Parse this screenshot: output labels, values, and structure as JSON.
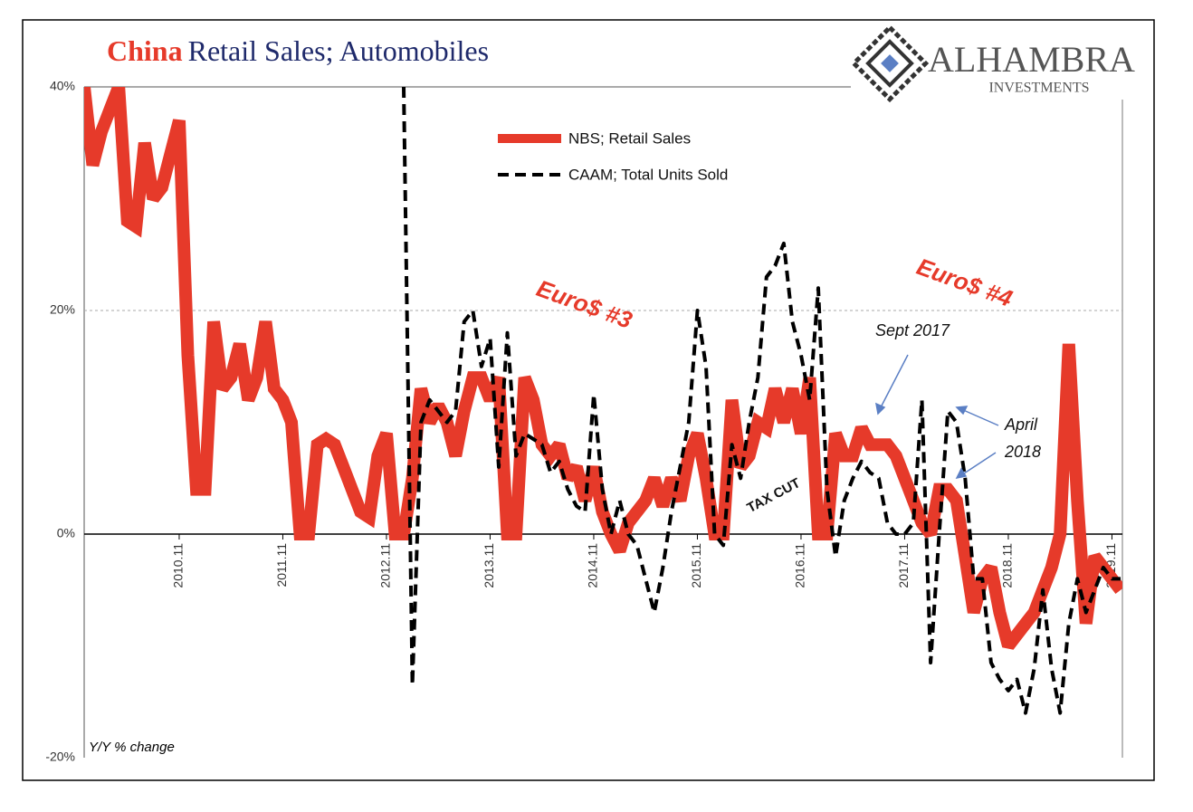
{
  "chart_data": {
    "type": "line",
    "title_parts": [
      "China",
      "Retail Sales; Automobiles"
    ],
    "brand": {
      "name": "ALHAMBRA",
      "tagline": "INVESTMENTS"
    },
    "ylabel": "Y/Y % change",
    "ylim": [
      -20,
      40
    ],
    "yticks": [
      {
        "value": -20,
        "label": "-20%"
      },
      {
        "value": 0,
        "label": "0%"
      },
      {
        "value": 20,
        "label": "20%"
      },
      {
        "value": 40,
        "label": "40%"
      }
    ],
    "grid": true,
    "categories": [
      null,
      null,
      null,
      null,
      null,
      null,
      null,
      null,
      null,
      null,
      null,
      "2010.11",
      null,
      null,
      null,
      null,
      null,
      null,
      null,
      null,
      null,
      null,
      null,
      "2011.11",
      null,
      null,
      null,
      null,
      null,
      null,
      null,
      null,
      null,
      null,
      null,
      "2012.11",
      null,
      null,
      null,
      null,
      null,
      null,
      null,
      null,
      null,
      null,
      null,
      "2013.11",
      null,
      null,
      null,
      null,
      null,
      null,
      null,
      null,
      null,
      null,
      null,
      "2014.11",
      null,
      null,
      null,
      null,
      null,
      null,
      null,
      null,
      null,
      null,
      null,
      "2015.11",
      null,
      null,
      null,
      null,
      null,
      null,
      null,
      null,
      null,
      null,
      null,
      "2016.11",
      null,
      null,
      null,
      null,
      null,
      null,
      null,
      null,
      null,
      null,
      null,
      "2017.11",
      null,
      null,
      null,
      null,
      null,
      null,
      null,
      null,
      null,
      null,
      null,
      "2018.11",
      null,
      null,
      null,
      null,
      null,
      null,
      null,
      null,
      null,
      null,
      null,
      "2019.11",
      null
    ],
    "series": [
      {
        "name": "NBS; Retail Sales",
        "color": "#e63a2a",
        "style": "solid",
        "values": [
          40,
          33,
          36,
          38,
          40,
          28,
          27.5,
          35,
          30,
          31,
          34,
          37,
          16,
          4,
          4,
          19,
          13,
          14,
          17,
          12,
          14,
          19,
          13,
          12,
          10,
          0,
          0,
          8,
          8.5,
          8,
          6,
          4,
          2,
          1.5,
          7,
          9,
          0,
          0,
          5,
          13,
          10,
          11.5,
          10,
          7,
          11,
          14,
          14,
          12,
          14,
          0,
          0,
          14,
          12,
          8,
          7,
          8,
          5,
          6,
          3,
          6,
          2,
          0,
          -1.5,
          1,
          2,
          3,
          5,
          2.5,
          5,
          3,
          7,
          9,
          5,
          0,
          0,
          12,
          6,
          7,
          10,
          9.5,
          13,
          10,
          13,
          9,
          14,
          0,
          0,
          9,
          7,
          7,
          9.5,
          8,
          8,
          8,
          7,
          5,
          3,
          1,
          0,
          4,
          4,
          3,
          -2,
          -7,
          -4,
          -3,
          -7,
          -10,
          -9,
          -8,
          -7,
          -5,
          -3,
          0,
          17,
          3,
          -8,
          -2,
          -3,
          -4,
          -5
        ]
      },
      {
        "name": "CAAM; Total Units Sold",
        "color": "#000000",
        "style": "dashed",
        "values": [
          null,
          null,
          null,
          null,
          null,
          null,
          null,
          null,
          null,
          null,
          null,
          null,
          null,
          null,
          null,
          null,
          null,
          null,
          null,
          null,
          null,
          null,
          null,
          null,
          null,
          null,
          null,
          null,
          null,
          null,
          null,
          null,
          null,
          null,
          null,
          null,
          null,
          40,
          -13.5,
          10,
          12,
          11,
          10,
          11,
          19,
          20,
          15,
          17.5,
          6,
          18,
          7,
          9,
          8.5,
          8,
          5.5,
          6.5,
          4,
          2.5,
          2,
          12.5,
          4,
          0,
          3,
          0,
          -1,
          -4,
          -7,
          -3,
          2,
          6,
          10,
          20,
          15,
          0,
          -1,
          8,
          5,
          10,
          14,
          23,
          24,
          26,
          19,
          16,
          12,
          22,
          4,
          -2,
          3,
          5,
          6.5,
          5.5,
          5,
          1,
          0,
          0,
          1,
          12,
          -11.5,
          0,
          11,
          10,
          5,
          -4,
          -4,
          -11.5,
          -13,
          -14,
          -13,
          -16,
          -12,
          -5,
          -12,
          -16,
          -8,
          -4,
          -7,
          -5,
          -3,
          -4,
          -4
        ]
      }
    ],
    "annotations": [
      "Euro$ #3",
      "Euro$ #4",
      "Sept 2017",
      "April",
      "2018",
      "TAX CUT"
    ]
  }
}
